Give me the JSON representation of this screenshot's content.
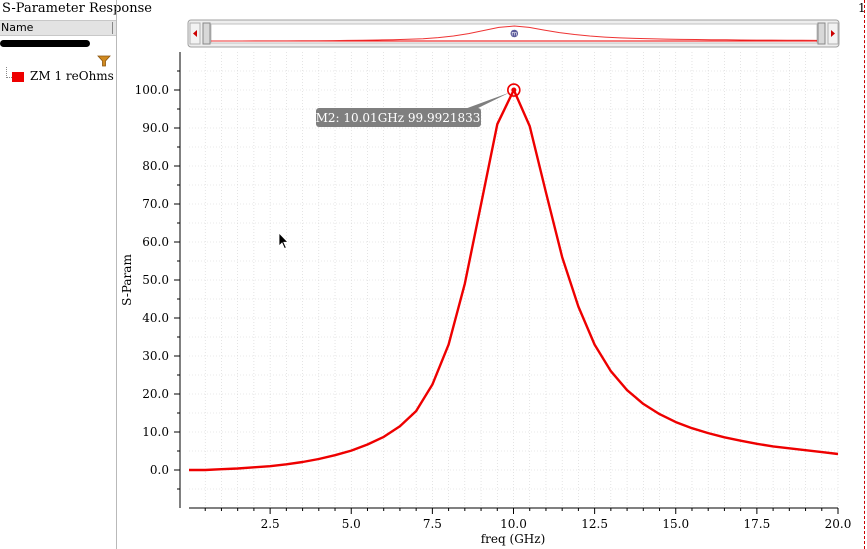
{
  "window": {
    "title": "S-Parameter Response",
    "corner_number": "1"
  },
  "sidebar": {
    "column_header": "Name",
    "legend_items": [
      {
        "label": "ZM 1 reOhms",
        "color": "#ee0000"
      }
    ]
  },
  "marker": {
    "symbol": "m",
    "label": "M2: 10.01GHz 99.9921833",
    "x": 10.01,
    "y": 99.9921833
  },
  "colors": {
    "trace": "#ee0000",
    "grid": "#c8c8c8",
    "tooltip_bg": "#7f7f7f"
  },
  "chart_data": {
    "type": "line",
    "xlabel": "freq (GHz)",
    "ylabel": "S-Param",
    "xlim": [
      0.0,
      20.0
    ],
    "ylim": [
      -10.0,
      110.0
    ],
    "x_ticks": [
      2.5,
      5.0,
      7.5,
      10.0,
      12.5,
      15.0,
      17.5,
      20.0
    ],
    "x_tick_labels": [
      "2.5",
      "5.0",
      "7.5",
      "10.0",
      "12.5",
      "15.0",
      "17.5",
      "20.0"
    ],
    "y_ticks": [
      0,
      10,
      20,
      30,
      40,
      50,
      60,
      70,
      80,
      90,
      100
    ],
    "y_tick_labels": [
      "0.0",
      "10.0",
      "20.0",
      "30.0",
      "40.0",
      "50.0",
      "60.0",
      "70.0",
      "80.0",
      "90.0",
      "100.0"
    ],
    "grid": true,
    "series": [
      {
        "name": "ZM 1 reOhms",
        "x": [
          0.0,
          0.5,
          1.0,
          1.5,
          2.0,
          2.5,
          3.0,
          3.5,
          4.0,
          4.5,
          5.0,
          5.5,
          6.0,
          6.5,
          7.0,
          7.5,
          8.0,
          8.5,
          9.0,
          9.5,
          10.01,
          10.5,
          11.0,
          11.5,
          12.0,
          12.5,
          13.0,
          13.5,
          14.0,
          14.5,
          15.0,
          15.5,
          16.0,
          16.5,
          17.0,
          17.5,
          18.0,
          18.5,
          19.0,
          19.5,
          20.0
        ],
        "y": [
          0.0,
          0.0,
          0.2,
          0.4,
          0.7,
          1.0,
          1.5,
          2.1,
          2.9,
          3.9,
          5.1,
          6.7,
          8.7,
          11.5,
          15.5,
          22.5,
          33.0,
          49.0,
          70.0,
          91.0,
          99.99,
          90.5,
          73.0,
          56.0,
          43.0,
          33.0,
          26.0,
          21.0,
          17.4,
          14.7,
          12.6,
          11.0,
          9.7,
          8.6,
          7.7,
          6.9,
          6.2,
          5.7,
          5.2,
          4.7,
          4.2
        ]
      }
    ]
  }
}
